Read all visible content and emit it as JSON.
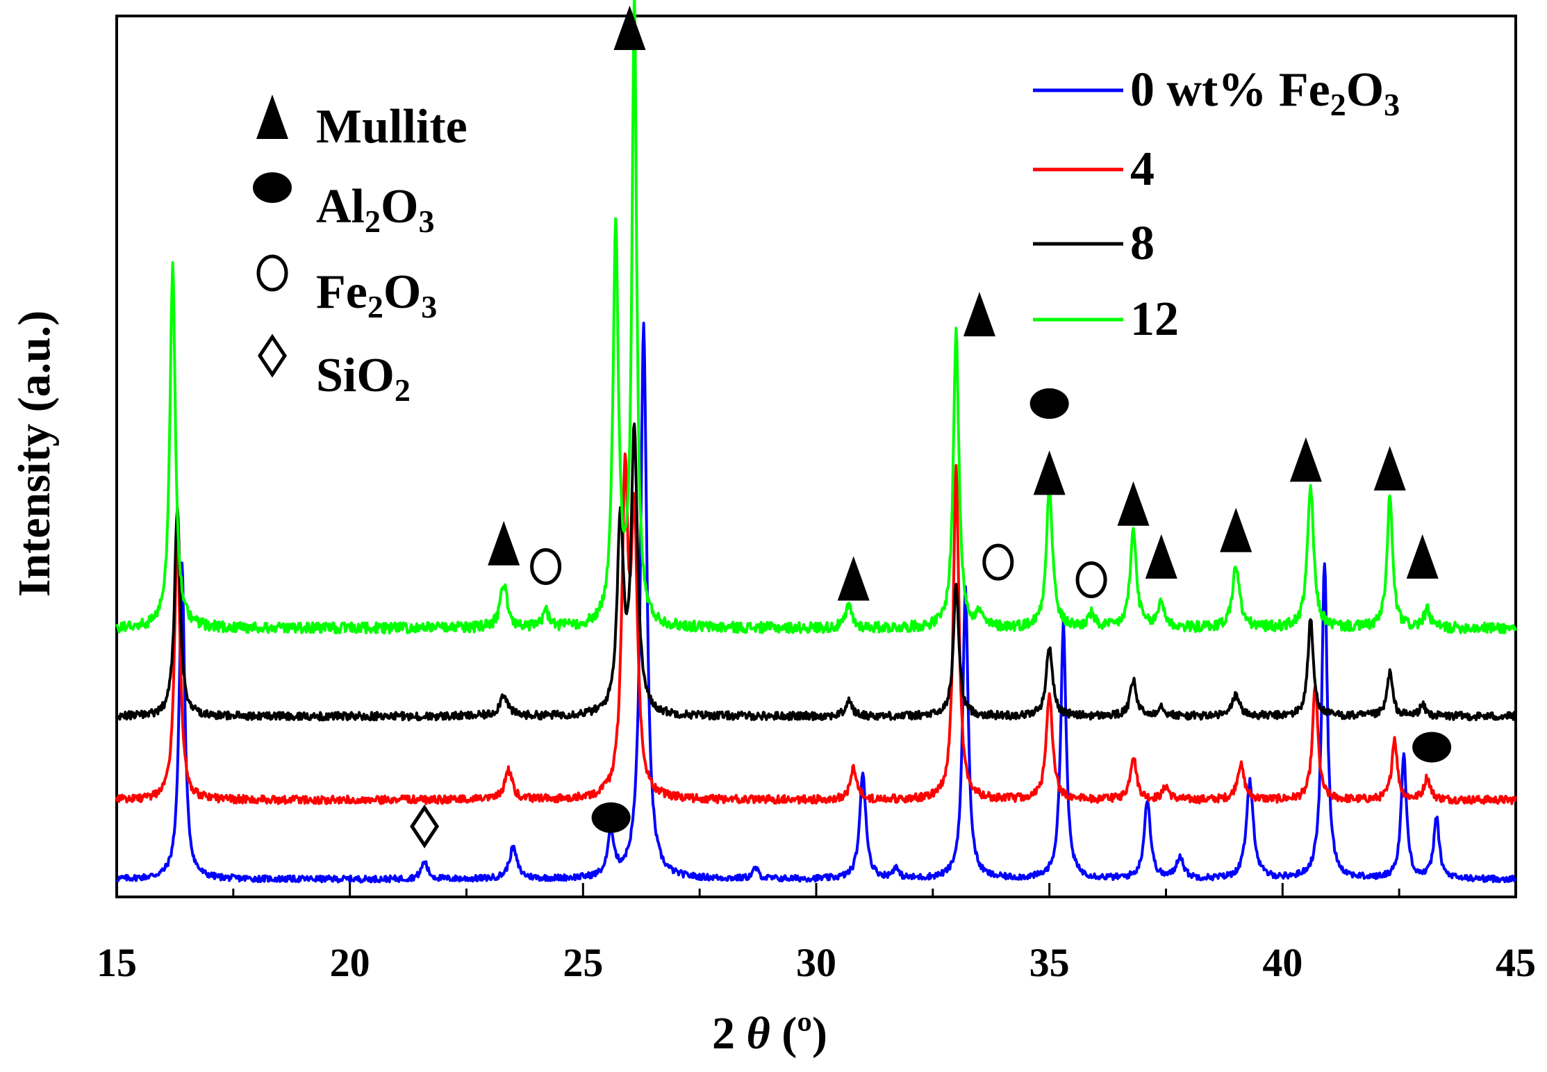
{
  "chart_data": {
    "type": "line",
    "title": "",
    "xlabel": "2 θ (º)",
    "ylabel": "Intensity (a.u.)",
    "xlim": [
      15,
      45
    ],
    "ylim": [
      0,
      100
    ],
    "xticks": [
      15,
      20,
      25,
      30,
      35,
      40,
      45
    ],
    "xtick_labels": [
      "15",
      "20",
      "25",
      "30",
      "35",
      "40",
      "45"
    ],
    "grid": false,
    "legend_position": "top-right",
    "series": [
      {
        "name": "0 wt% Fe2O3",
        "legend_label": "0 wt% Fe",
        "legend_sub": "2",
        "legend_tail": "O",
        "legend_sub2": "3",
        "color": "#0000ff",
        "baseline": 2.0,
        "noise": 0.35,
        "peaks": [
          [
            16.4,
            36,
            0.07
          ],
          [
            21.6,
            2.0,
            0.08
          ],
          [
            23.5,
            3.5,
            0.1
          ],
          [
            25.6,
            5,
            0.08
          ],
          [
            26.3,
            63,
            0.08
          ],
          [
            28.7,
            1.2,
            0.07
          ],
          [
            31.0,
            12,
            0.08
          ],
          [
            31.7,
            1.2,
            0.07
          ],
          [
            33.2,
            33,
            0.07
          ],
          [
            35.3,
            29,
            0.07
          ],
          [
            37.1,
            9,
            0.08
          ],
          [
            37.8,
            2.5,
            0.09
          ],
          [
            39.3,
            11,
            0.09
          ],
          [
            40.9,
            36,
            0.07
          ],
          [
            42.6,
            14,
            0.07
          ],
          [
            43.3,
            7,
            0.07
          ]
        ]
      },
      {
        "name": "4",
        "legend_label": "4",
        "color": "#ff0000",
        "baseline": 11.0,
        "noise": 0.45,
        "peaks": [
          [
            16.3,
            31,
            0.07
          ],
          [
            23.4,
            3.3,
            0.1
          ],
          [
            25.9,
            35,
            0.08
          ],
          [
            26.1,
            30,
            0.08
          ],
          [
            30.8,
            3.5,
            0.08
          ],
          [
            33.0,
            38,
            0.07
          ],
          [
            35.0,
            12,
            0.08
          ],
          [
            36.8,
            5,
            0.08
          ],
          [
            37.5,
            1.5,
            0.08
          ],
          [
            39.1,
            4,
            0.09
          ],
          [
            40.7,
            13,
            0.07
          ],
          [
            42.4,
            7,
            0.07
          ],
          [
            43.1,
            2.5,
            0.08
          ]
        ]
      },
      {
        "name": "8",
        "legend_label": "8",
        "color": "#000000",
        "baseline": 20.5,
        "noise": 0.45,
        "peaks": [
          [
            16.3,
            24,
            0.07
          ],
          [
            23.3,
            2.5,
            0.1
          ],
          [
            25.8,
            22,
            0.08
          ],
          [
            26.1,
            32,
            0.08
          ],
          [
            30.7,
            1.8,
            0.08
          ],
          [
            33.0,
            15,
            0.07
          ],
          [
            35.0,
            8,
            0.08
          ],
          [
            36.8,
            4,
            0.08
          ],
          [
            37.4,
            1.2,
            0.08
          ],
          [
            39.0,
            2.5,
            0.09
          ],
          [
            40.6,
            11,
            0.07
          ],
          [
            42.3,
            5,
            0.07
          ],
          [
            43.0,
            1.2,
            0.08
          ]
        ]
      },
      {
        "name": "12",
        "legend_label": "12",
        "color": "#00ff00",
        "baseline": 30.5,
        "noise": 0.6,
        "peaks": [
          [
            16.2,
            41,
            0.07
          ],
          [
            23.3,
            5,
            0.09
          ],
          [
            24.2,
            2.0,
            0.07
          ],
          [
            25.7,
            45,
            0.07
          ],
          [
            26.1,
            71,
            0.06
          ],
          [
            30.7,
            2.5,
            0.08
          ],
          [
            33.0,
            34,
            0.07
          ],
          [
            33.5,
            1.5,
            0.07
          ],
          [
            35.0,
            16,
            0.08
          ],
          [
            35.9,
            1.5,
            0.08
          ],
          [
            36.8,
            11,
            0.08
          ],
          [
            37.4,
            3,
            0.08
          ],
          [
            39.0,
            7,
            0.09
          ],
          [
            40.6,
            16,
            0.08
          ],
          [
            42.3,
            15,
            0.07
          ],
          [
            43.1,
            2,
            0.08
          ]
        ]
      }
    ],
    "phase_legend": [
      {
        "symbol": "triangle",
        "text": "Mullite"
      },
      {
        "symbol": "ellipse",
        "text": "Al",
        "sub": "2",
        "tail": "O",
        "sub2": "3"
      },
      {
        "symbol": "circle",
        "text": "Fe",
        "sub": "2",
        "tail": "O",
        "sub2": "3"
      },
      {
        "symbol": "diamond",
        "text": "SiO",
        "sub": "2",
        "tail": "",
        "sub2": ""
      }
    ],
    "annotations": [
      {
        "symbol": "triangle",
        "x": 26.0,
        "y": 98.5
      },
      {
        "symbol": "triangle",
        "x": 23.3,
        "y": 40.0
      },
      {
        "symbol": "circle",
        "x": 24.2,
        "y": 37.5
      },
      {
        "symbol": "triangle",
        "x": 30.8,
        "y": 36.0
      },
      {
        "symbol": "triangle",
        "x": 33.5,
        "y": 66.0
      },
      {
        "symbol": "circle",
        "x": 33.9,
        "y": 38.0
      },
      {
        "symbol": "ellipse",
        "x": 35.0,
        "y": 56.0
      },
      {
        "symbol": "triangle",
        "x": 35.0,
        "y": 48.0
      },
      {
        "symbol": "circle",
        "x": 35.9,
        "y": 36.0
      },
      {
        "symbol": "triangle",
        "x": 36.8,
        "y": 44.5
      },
      {
        "symbol": "triangle",
        "x": 37.4,
        "y": 38.5
      },
      {
        "symbol": "triangle",
        "x": 39.0,
        "y": 41.5
      },
      {
        "symbol": "triangle",
        "x": 40.5,
        "y": 49.5
      },
      {
        "symbol": "triangle",
        "x": 42.3,
        "y": 48.5
      },
      {
        "symbol": "triangle",
        "x": 43.0,
        "y": 38.5
      },
      {
        "symbol": "ellipse",
        "x": 43.2,
        "y": 17.0
      },
      {
        "symbol": "ellipse",
        "x": 25.6,
        "y": 9.0
      },
      {
        "symbol": "diamond",
        "x": 21.6,
        "y": 8.0
      }
    ]
  }
}
